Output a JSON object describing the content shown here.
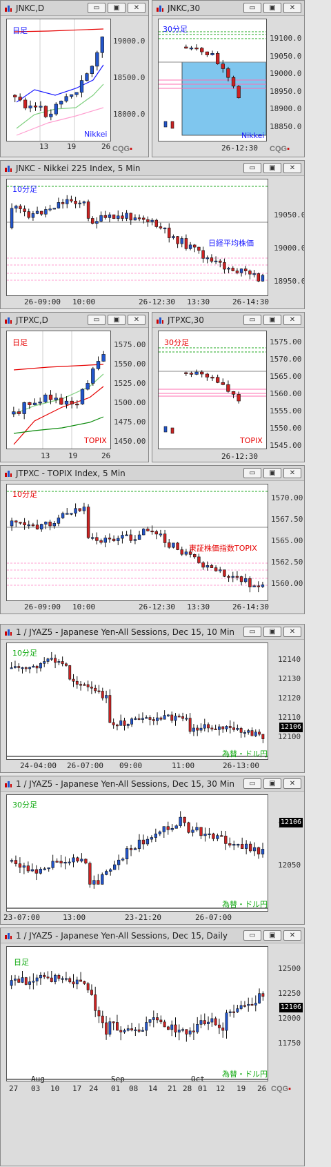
{
  "colors": {
    "up": "#2255cc",
    "down": "#cc2222",
    "ma_red": "#e60000",
    "ma_blue": "#1a1aff",
    "ma_green": "#11aa11",
    "dash_green": "#22aa22",
    "hl": "#7fc6ee"
  },
  "buttons": {
    "min": "▭",
    "max": "▣",
    "close": "✕"
  },
  "win1": {
    "title": "JNKC,D",
    "tag": "日足",
    "name": "Nikkei",
    "ticks": [
      "19000.0",
      "18500.0",
      "18000.0"
    ],
    "xt": [
      "13",
      "19",
      "26"
    ],
    "logo": "CQG"
  },
  "win2": {
    "title": "JNKC,30",
    "tag": "30分足",
    "name": "Nikkei",
    "ticks": [
      "19100.0",
      "19050.0",
      "19000.0",
      "18950.0",
      "18900.0",
      "18850.0"
    ],
    "xt": [
      "26-12:30"
    ],
    "logo": "CQG"
  },
  "win3": {
    "title": "JNKC - Nikkei 225 Index, 5 Min",
    "tag": "10分足",
    "name": "日経平均株価",
    "ticks": [
      "19050.0",
      "19000.0",
      "18950.0"
    ],
    "xt": [
      "26-09:00",
      "10:00",
      "26-12:30",
      "13:30",
      "26-14:30"
    ]
  },
  "win4": {
    "title": "JTPXC,D",
    "tag": "日足",
    "name": "TOPIX",
    "ticks": [
      "1575.00",
      "1550.00",
      "1525.00",
      "1500.00",
      "1475.00",
      "1450.00"
    ],
    "xt": [
      "13",
      "19",
      "26"
    ]
  },
  "win5": {
    "title": "JTPXC,30",
    "tag": "30分足",
    "name": "TOPIX",
    "ticks": [
      "1575.00",
      "1570.00",
      "1565.00",
      "1560.00",
      "1555.00",
      "1550.00",
      "1545.00"
    ],
    "xt": [
      "26-12:30"
    ]
  },
  "win6": {
    "title": "JTPXC - TOPIX Index, 5 Min",
    "tag": "10分足",
    "name": "東証株価指数TOPIX",
    "ticks": [
      "1570.00",
      "1567.50",
      "1565.00",
      "1562.50",
      "1560.00"
    ],
    "xt": [
      "26-09:00",
      "10:00",
      "26-12:30",
      "13:30",
      "26-14:30"
    ]
  },
  "win7": {
    "title": "1 / JYAZ5 - Japanese Yen-All Sessions, Dec 15, 10 Min",
    "tag": "10分足",
    "name": "為替・ドル円",
    "ticks": [
      "12140",
      "12130",
      "12120",
      "12110",
      "12100"
    ],
    "price": "12106",
    "xt": [
      "24-04:00",
      "26-07:00",
      "09:00",
      "11:00",
      "26-13:00"
    ]
  },
  "win8": {
    "title": "1 / JYAZ5 - Japanese Yen-All Sessions, Dec 15, 30 Min",
    "tag": "30分足",
    "name": "為替・ドル円",
    "ticks": [
      "12100",
      "12050"
    ],
    "price": "12106",
    "xt": [
      "23-07:00",
      "13:00",
      "23-21:20",
      "26-07:00"
    ]
  },
  "win9": {
    "title": "1 / JYAZ5 - Japanese Yen-All Sessions, Dec 15, Daily",
    "tag": "日足",
    "name": "為替・ドル円",
    "ticks": [
      "12500",
      "12250",
      "12000",
      "11750"
    ],
    "price": "12106",
    "xt": [
      "27",
      "03",
      "10",
      "17",
      "24",
      "01",
      "08",
      "14",
      "21",
      "28",
      "01",
      "12",
      "19",
      "26"
    ],
    "months": [
      "Aug",
      "Sep",
      "Oct"
    ],
    "logo": "CQG"
  }
}
